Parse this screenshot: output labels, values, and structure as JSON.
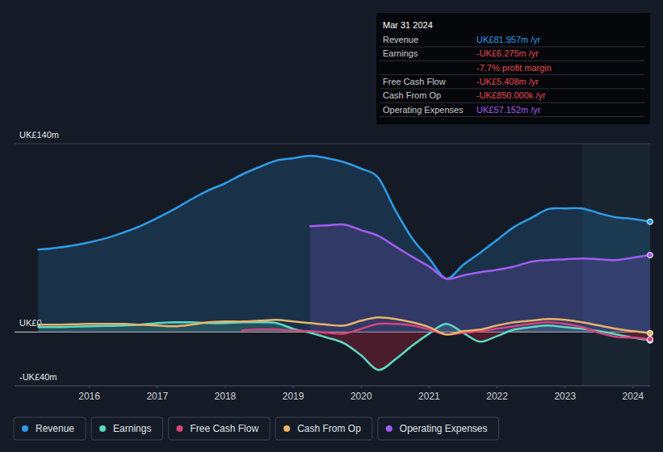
{
  "chart_data": {
    "type": "line",
    "x": [
      2015.25,
      2015.5,
      2015.75,
      2016.0,
      2016.25,
      2016.5,
      2016.75,
      2017.0,
      2017.25,
      2017.5,
      2017.75,
      2018.0,
      2018.25,
      2018.5,
      2018.75,
      2019.0,
      2019.25,
      2019.5,
      2019.75,
      2020.0,
      2020.25,
      2020.5,
      2020.75,
      2021.0,
      2021.25,
      2021.5,
      2021.75,
      2022.0,
      2022.25,
      2022.5,
      2022.75,
      2023.0,
      2023.25,
      2023.5,
      2023.75,
      2024.0,
      2024.25
    ],
    "series": [
      {
        "name": "Revenue",
        "color": "#2f9be8",
        "type": "area",
        "values": [
          61.3,
          62.5,
          64.3,
          66.7,
          69.7,
          73.9,
          78.7,
          84.7,
          91.3,
          98.6,
          105.2,
          110.6,
          117.2,
          122.6,
          127.4,
          129.2,
          131.0,
          129.2,
          126.2,
          121.4,
          114.8,
          90.7,
          69.7,
          54.7,
          39.7,
          49.9,
          58.9,
          68.5,
          78.1,
          84.7,
          91.3,
          91.9,
          91.9,
          88.3,
          85.3,
          84.1,
          81.957
        ]
      },
      {
        "name": "Earnings",
        "color": "#5cd9c4",
        "type": "area",
        "values": [
          3.6,
          3.6,
          3.9,
          4.2,
          4.5,
          4.8,
          5.4,
          6.6,
          7.2,
          7.2,
          6.6,
          6.6,
          7.2,
          7.2,
          6.6,
          2.4,
          -0.6,
          -4.2,
          -8.4,
          -17.4,
          -28.2,
          -20.4,
          -10.2,
          -1.2,
          6.0,
          -0.6,
          -7.2,
          -3.0,
          1.8,
          3.6,
          4.8,
          3.6,
          2.4,
          0.6,
          -1.8,
          -4.2,
          -6.275
        ]
      },
      {
        "name": "Free Cash Flow",
        "color": "#d6447c",
        "type": "line",
        "values": [
          null,
          null,
          null,
          null,
          null,
          null,
          null,
          null,
          null,
          null,
          null,
          null,
          1.2,
          1.8,
          1.8,
          1.2,
          0.6,
          -0.6,
          -1.2,
          2.4,
          6.0,
          6.0,
          4.8,
          1.8,
          -1.8,
          -0.6,
          0.6,
          2.4,
          4.2,
          6.0,
          7.2,
          6.0,
          3.6,
          -0.6,
          -3.6,
          -4.2,
          -5.408
        ]
      },
      {
        "name": "Cash From Op",
        "color": "#e9b268",
        "type": "line",
        "values": [
          5.4,
          5.4,
          5.7,
          6.0,
          6.0,
          6.0,
          5.4,
          4.8,
          4.2,
          5.4,
          7.2,
          7.8,
          7.8,
          8.4,
          9.0,
          7.8,
          6.6,
          5.4,
          4.8,
          8.4,
          10.8,
          9.6,
          7.2,
          3.6,
          -1.8,
          0.6,
          1.8,
          4.8,
          7.2,
          8.4,
          9.6,
          9.0,
          7.2,
          4.8,
          2.4,
          0.6,
          -0.85
        ]
      },
      {
        "name": "Operating Expenses",
        "color": "#a35cf0",
        "type": "area",
        "values": [
          null,
          null,
          null,
          null,
          null,
          null,
          null,
          null,
          null,
          null,
          null,
          null,
          null,
          null,
          null,
          null,
          78.7,
          79.3,
          79.9,
          75.7,
          71.5,
          63.7,
          55.9,
          48.7,
          39.7,
          42.1,
          44.5,
          46.3,
          48.7,
          52.3,
          53.5,
          54.1,
          54.7,
          54.1,
          53.5,
          55.3,
          57.152
        ]
      }
    ],
    "xlim": [
      2014.9,
      2024.25
    ],
    "xticks": [
      2016,
      2017,
      2018,
      2019,
      2020,
      2021,
      2022,
      2023,
      2024
    ],
    "ylim": [
      -40,
      140
    ],
    "yticks": [
      {
        "value": 140,
        "label": "UK£140m"
      },
      {
        "value": 0,
        "label": "UK£0"
      },
      {
        "value": -40,
        "label": "-UK£40m"
      }
    ],
    "grid": true,
    "legend": "bottom",
    "highlight_x": [
      2023.25,
      2024.25
    ],
    "tooltip": {
      "title": "Mar 31 2024",
      "rows": [
        {
          "label": "Revenue",
          "value": "UK£81.957m /yr"
        },
        {
          "label": "Earnings",
          "value": "-UK£6.275m /yr"
        },
        {
          "value": "-7.7% profit margin"
        },
        {
          "label": "Free Cash Flow",
          "value": "-UK£5.408m /yr"
        },
        {
          "label": "Cash From Op",
          "value": "-UK£850.000k /yr"
        },
        {
          "label": "Operating Expenses",
          "value": "UK£57.152m /yr"
        }
      ]
    }
  }
}
